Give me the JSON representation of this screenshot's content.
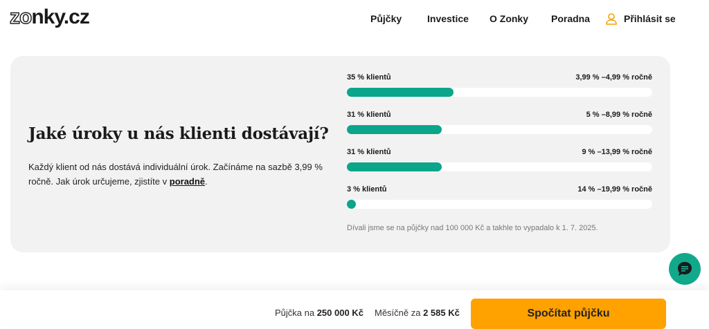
{
  "header": {
    "logo": "zonky.cz",
    "nav": [
      "Půjčky",
      "Investice",
      "O Zonky",
      "Poradna"
    ],
    "login": "Přihlásit se"
  },
  "section": {
    "title": "Jaké úroky u nás klienti dostávají?",
    "desc_text": "Každý klient od nás dostává individuální úrok. Začínáme na sazbě 3,99 % ročně. Jak úrok určujeme, zjistíte v ",
    "desc_link": "poradně",
    "desc_end": ".",
    "rows": [
      {
        "label": "35 % klientů",
        "range": "3,99 % –4,99 % ročně",
        "percent": 35
      },
      {
        "label": "31 % klientů",
        "range": "5 % –8,99 % ročně",
        "percent": 31
      },
      {
        "label": "31 % klientů",
        "range": "9 % –13,99 % ročně",
        "percent": 31
      },
      {
        "label": "3 % klientů",
        "range": "14 % –19,99 % ročně",
        "percent": 3
      }
    ],
    "note": "Dívali jsme se na půjčky nad 100 000 Kč a takhle to vypadalo k 1. 7. 2025."
  },
  "bottom": {
    "loan_prefix": "Půjčka na ",
    "loan_value": "250 000 Kč",
    "monthly_prefix": "Měsíčně za ",
    "monthly_value": "2 585 Kč",
    "cta": "Spočítat půjčku"
  },
  "colors": {
    "accent": "#0aa58a",
    "cta": "#ffa200"
  }
}
